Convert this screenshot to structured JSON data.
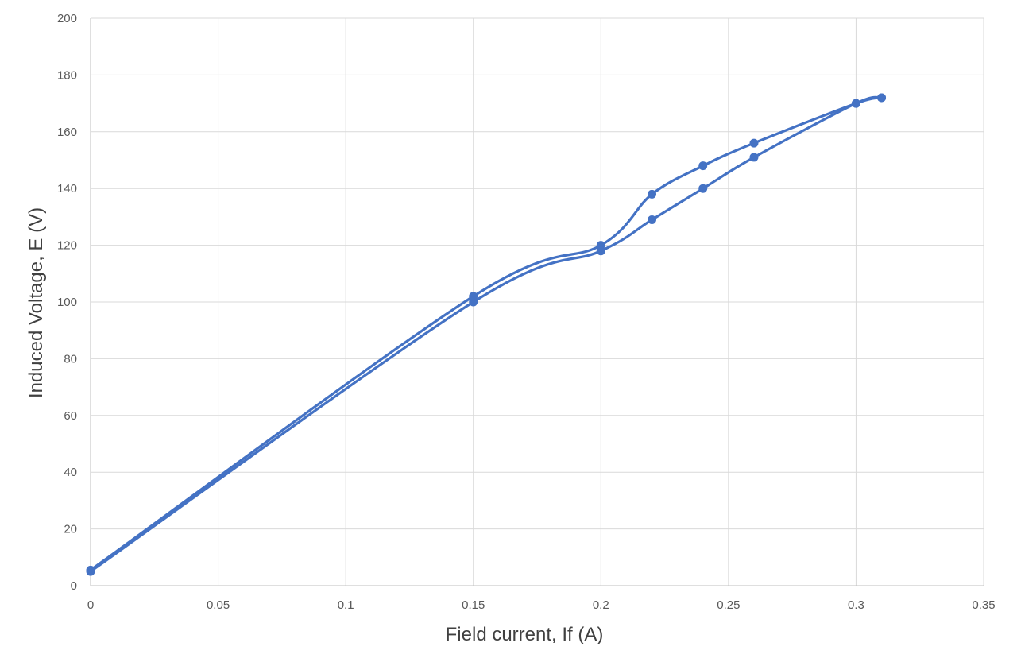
{
  "chart_data": {
    "type": "scatter",
    "title": "",
    "xlabel": "Field current, If (A)",
    "ylabel": "Induced Voltage, E (V)",
    "xlim": [
      0,
      0.35
    ],
    "ylim": [
      0,
      200
    ],
    "x_ticks": [
      "0",
      "0.05",
      "0.1",
      "0.15",
      "0.2",
      "0.25",
      "0.3",
      "0.35"
    ],
    "y_ticks": [
      "0",
      "20",
      "40",
      "60",
      "80",
      "100",
      "120",
      "140",
      "160",
      "180",
      "200"
    ],
    "grid": true,
    "legend": "none",
    "smooth_lines": true,
    "markers": true,
    "colors": {
      "series": "#4472C4",
      "grid": "#d9d9d9",
      "axis": "#bfbfbf"
    },
    "series": [
      {
        "x": [
          0,
          0.15,
          0.2,
          0.22,
          0.24,
          0.26,
          0.3,
          0.31
        ],
        "y": [
          5,
          100,
          118,
          129,
          140,
          151,
          170,
          172
        ]
      },
      {
        "x": [
          0.31,
          0.3,
          0.26,
          0.24,
          0.22,
          0.2,
          0.15,
          0
        ],
        "y": [
          172,
          170,
          156,
          148,
          138,
          120,
          102,
          5.5
        ]
      }
    ]
  }
}
